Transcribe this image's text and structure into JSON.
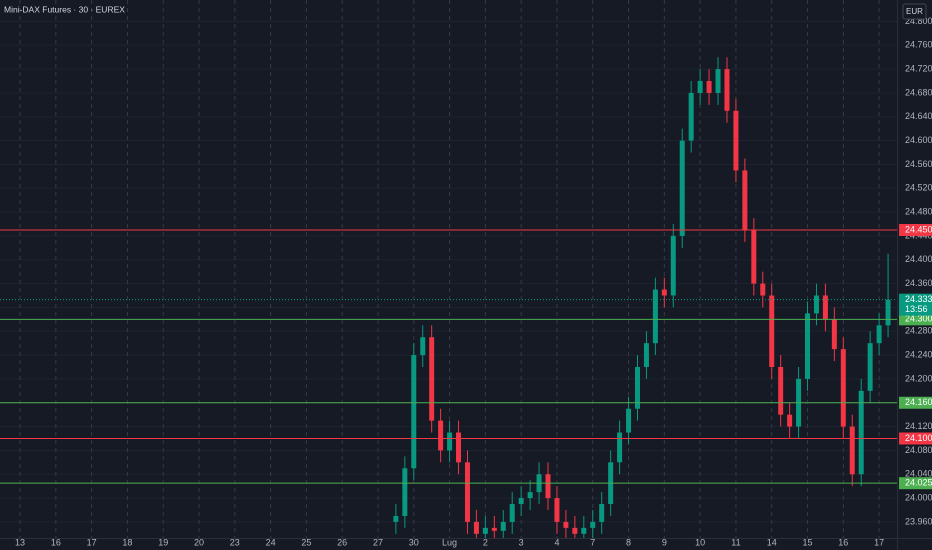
{
  "chart_data": {
    "type": "candlestick",
    "title": "Mini-DAX Futures · 30 · EUREX",
    "currency": "EUR",
    "up_color": "#089981",
    "down_color": "#f23645",
    "grid": true,
    "xlim": [
      -0.56,
      24.5
    ],
    "xticks": [
      {
        "value": 0,
        "label": "13"
      },
      {
        "value": 1,
        "label": "16"
      },
      {
        "value": 2,
        "label": "17"
      },
      {
        "value": 3,
        "label": "18"
      },
      {
        "value": 4,
        "label": "19"
      },
      {
        "value": 5,
        "label": "20"
      },
      {
        "value": 6,
        "label": "23"
      },
      {
        "value": 7,
        "label": "24"
      },
      {
        "value": 8,
        "label": "25"
      },
      {
        "value": 9,
        "label": "26"
      },
      {
        "value": 10,
        "label": "27"
      },
      {
        "value": 11,
        "label": "30"
      },
      {
        "value": 12,
        "label": "Lug"
      },
      {
        "value": 13,
        "label": "2"
      },
      {
        "value": 14,
        "label": "3"
      },
      {
        "value": 15,
        "label": "4"
      },
      {
        "value": 16,
        "label": "7"
      },
      {
        "value": 17,
        "label": "8"
      },
      {
        "value": 18,
        "label": "9"
      },
      {
        "value": 19,
        "label": "10"
      },
      {
        "value": 20,
        "label": "11"
      },
      {
        "value": 21,
        "label": "14"
      },
      {
        "value": 22,
        "label": "15"
      },
      {
        "value": 23,
        "label": "16"
      },
      {
        "value": 24,
        "label": "17"
      }
    ],
    "ylim": [
      23933,
      24836
    ],
    "yticks": [
      {
        "value": 23960,
        "label": "23.960"
      },
      {
        "value": 24000,
        "label": "24.000"
      },
      {
        "value": 24040,
        "label": "24.040"
      },
      {
        "value": 24080,
        "label": "24.080"
      },
      {
        "value": 24120,
        "label": "24.120"
      },
      {
        "value": 24160,
        "label": "24.160"
      },
      {
        "value": 24200,
        "label": "24.200"
      },
      {
        "value": 24240,
        "label": "24.240"
      },
      {
        "value": 24280,
        "label": "24.280"
      },
      {
        "value": 24320,
        "label": "24.320"
      },
      {
        "value": 24360,
        "label": "24.360"
      },
      {
        "value": 24400,
        "label": "24.400"
      },
      {
        "value": 24440,
        "label": "24.440"
      },
      {
        "value": 24480,
        "label": "24.480"
      },
      {
        "value": 24520,
        "label": "24.520"
      },
      {
        "value": 24560,
        "label": "24.560"
      },
      {
        "value": 24600,
        "label": "24.600"
      },
      {
        "value": 24640,
        "label": "24.640"
      },
      {
        "value": 24680,
        "label": "24.680"
      },
      {
        "value": 24720,
        "label": "24.720"
      },
      {
        "value": 24760,
        "label": "24.760"
      },
      {
        "value": 24800,
        "label": "24.800"
      }
    ],
    "levels": [
      {
        "value": 24450,
        "label": "24.450",
        "color": "#f23645"
      },
      {
        "value": 24300,
        "label": "24.300",
        "color": "#4caf50"
      },
      {
        "value": 24160,
        "label": "24.160",
        "color": "#4caf50"
      },
      {
        "value": 24100,
        "label": "24.100",
        "color": "#f23645"
      },
      {
        "value": 24025,
        "label": "24.025",
        "color": "#4caf50"
      }
    ],
    "last_price": {
      "value": 24333,
      "label": "24.333",
      "countdown": "13:56",
      "color": "#089981"
    },
    "x": [
      10.5,
      10.75,
      11,
      11.25,
      11.5,
      11.75,
      12,
      12.25,
      12.5,
      12.75,
      13,
      13.25,
      13.5,
      13.75,
      14,
      14.25,
      14.5,
      14.75,
      15,
      15.25,
      15.5,
      15.75,
      16,
      16.25,
      16.5,
      16.75,
      17,
      17.25,
      17.5,
      17.75,
      18,
      18.25,
      18.5,
      18.75,
      19,
      19.25,
      19.5,
      19.75,
      20,
      20.25,
      20.5,
      20.75,
      21,
      21.25,
      21.5,
      21.75,
      22,
      22.25,
      22.5,
      22.75,
      23,
      23.25,
      23.5,
      23.75,
      24,
      24.25
    ],
    "open": [
      23960,
      23970,
      24050,
      24240,
      24270,
      24130,
      24080,
      24110,
      24060,
      23960,
      23940,
      23950,
      23945,
      23960,
      23990,
      24000,
      24010,
      24040,
      24000,
      23960,
      23950,
      23940,
      23950,
      23960,
      23990,
      24060,
      24110,
      24150,
      24220,
      24260,
      24350,
      24340,
      24440,
      24600,
      24680,
      24700,
      24680,
      24720,
      24650,
      24550,
      24450,
      24360,
      24340,
      24220,
      24140,
      24120,
      24200,
      24310,
      24340,
      24300,
      24250,
      24120,
      24040,
      24180,
      24260,
      24290
    ],
    "high": [
      23990,
      24070,
      24260,
      24290,
      24290,
      24150,
      24130,
      24130,
      24080,
      23980,
      23970,
      23970,
      23980,
      24010,
      24020,
      24030,
      24060,
      24060,
      24020,
      23980,
      23970,
      23970,
      23980,
      24010,
      24080,
      24130,
      24170,
      24240,
      24280,
      24370,
      24370,
      24460,
      24620,
      24700,
      24720,
      24720,
      24740,
      24740,
      24670,
      24570,
      24470,
      24380,
      24360,
      24240,
      24160,
      24220,
      24330,
      24360,
      24360,
      24320,
      24270,
      24140,
      24200,
      24280,
      24310,
      24410
    ],
    "low": [
      23940,
      23950,
      24030,
      24220,
      24110,
      24060,
      24060,
      24040,
      23940,
      23920,
      23920,
      23925,
      23925,
      23940,
      23970,
      23980,
      23990,
      23980,
      23940,
      23930,
      23920,
      23920,
      23930,
      23940,
      23970,
      24040,
      24090,
      24130,
      24200,
      24240,
      24320,
      24320,
      24420,
      24580,
      24660,
      24660,
      24660,
      24630,
      24530,
      24430,
      24340,
      24320,
      24200,
      24120,
      24100,
      24100,
      24180,
      24290,
      24280,
      24230,
      24100,
      24020,
      24020,
      24160,
      24240,
      24270
    ],
    "close": [
      23970,
      24050,
      24240,
      24270,
      24130,
      24080,
      24110,
      24060,
      23960,
      23940,
      23950,
      23945,
      23960,
      23990,
      24000,
      24010,
      24040,
      24000,
      23960,
      23950,
      23940,
      23950,
      23960,
      23990,
      24060,
      24110,
      24150,
      24220,
      24260,
      24350,
      24340,
      24440,
      24600,
      24680,
      24700,
      24680,
      24720,
      24650,
      24550,
      24450,
      24360,
      24340,
      24220,
      24140,
      24120,
      24200,
      24310,
      24340,
      24300,
      24250,
      24120,
      24040,
      24180,
      24260,
      24290,
      24333
    ]
  }
}
